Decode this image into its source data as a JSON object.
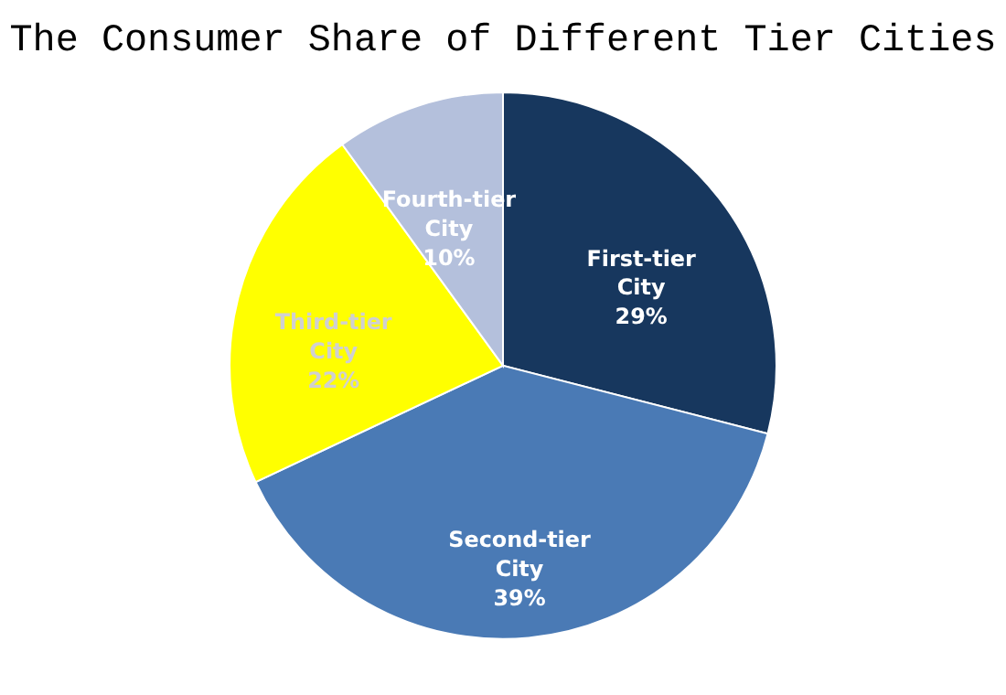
{
  "chart_data": {
    "type": "pie",
    "title": "The Consumer Share of Different Tier Cities",
    "categories": [
      "First-tier City",
      "Second-tier City",
      "Third-tier City",
      "Fourth-tier City"
    ],
    "values": [
      29,
      39,
      22,
      10
    ],
    "colors": [
      "#17375e",
      "#4a7ab5",
      "#ffff00",
      "#b4c0dc"
    ],
    "value_labels": [
      "29%",
      "39%",
      "22%",
      "10%"
    ],
    "legend": false
  }
}
